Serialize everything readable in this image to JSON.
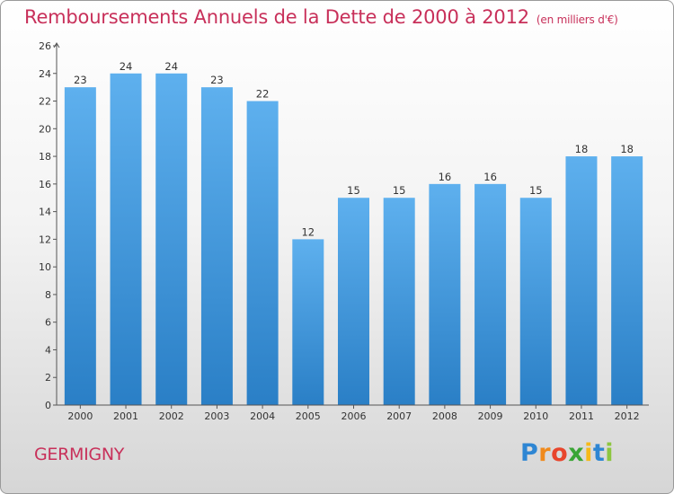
{
  "chart_data": {
    "type": "bar",
    "title": "Remboursements Annuels de la Dette de 2000 à 2012",
    "subtitle": "(en milliers d'€)",
    "categories": [
      "2000",
      "2001",
      "2002",
      "2003",
      "2004",
      "2005",
      "2006",
      "2007",
      "2008",
      "2009",
      "2010",
      "2011",
      "2012"
    ],
    "values": [
      23,
      24,
      24,
      23,
      22,
      12,
      15,
      15,
      16,
      16,
      15,
      18,
      18
    ],
    "data_labels": [
      "23",
      "24",
      "24",
      "23",
      "22",
      "12",
      "15",
      "15",
      "16",
      "16",
      "15",
      "18",
      "18"
    ],
    "ylim": [
      0,
      26
    ],
    "yticks": [
      0,
      2,
      4,
      6,
      8,
      10,
      12,
      14,
      16,
      18,
      20,
      22,
      24,
      26
    ],
    "ytick_labels": [
      "0",
      "2",
      "4",
      "6",
      "8",
      "10",
      "12",
      "14",
      "16",
      "18",
      "20",
      "22",
      "24",
      "26"
    ],
    "xlabel": "",
    "ylabel": "",
    "grid": false,
    "colors": {
      "bar_top": "#5eb0ee",
      "bar_bottom": "#2a7fc6",
      "axis": "#555555",
      "title": "#c8305a"
    }
  },
  "footer": {
    "commune": "GERMIGNY",
    "logo": {
      "letters": [
        "P",
        "r",
        "o",
        "x",
        "i",
        "t",
        "i"
      ],
      "colors": [
        "#2e86d3",
        "#f08a1c",
        "#e8452c",
        "#3aa535",
        "#f6b919",
        "#2e86d3",
        "#8dc63f"
      ]
    }
  }
}
